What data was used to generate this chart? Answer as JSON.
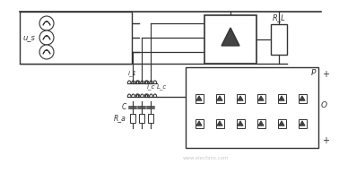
{
  "bg_color": "#ffffff",
  "line_color": "#333333",
  "figsize": [
    3.78,
    1.93
  ],
  "dpi": 100,
  "us_label": "u_s",
  "RL_label": "R_L",
  "P_label": "P",
  "O_label": "O",
  "C_label": "C",
  "Ra_label": "R_a",
  "i1_label": "i_1",
  "i2_label": "i_c",
  "L_label": "L_c",
  "watermark": "www.elecfans.com"
}
